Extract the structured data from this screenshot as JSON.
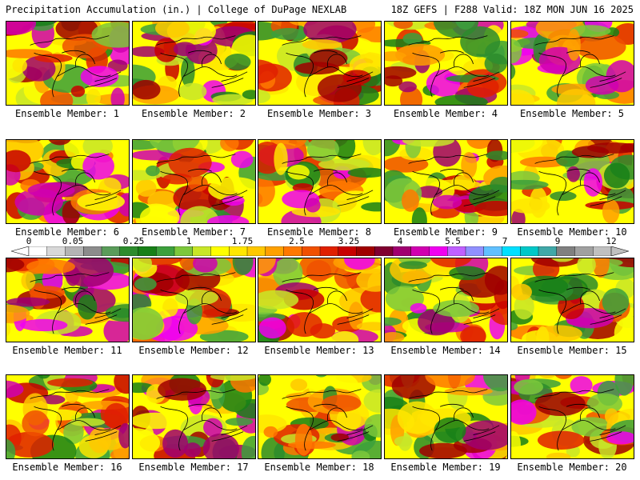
{
  "header": {
    "title": "Precipitation Accumulation (in.) | College of DuPage NEXLAB",
    "run_info": "18Z GEFS | F288 Valid: 18Z MON JUN 16 2025"
  },
  "panels": [
    {
      "label": "Ensemble Member: 1"
    },
    {
      "label": "Ensemble Member: 2"
    },
    {
      "label": "Ensemble Member: 3"
    },
    {
      "label": "Ensemble Member: 4"
    },
    {
      "label": "Ensemble Member: 5"
    },
    {
      "label": "Ensemble Member: 6"
    },
    {
      "label": "Ensemble Member: 7"
    },
    {
      "label": "Ensemble Member: 8"
    },
    {
      "label": "Ensemble Member: 9"
    },
    {
      "label": "Ensemble Member: 10"
    },
    {
      "label": "Ensemble Member: 11"
    },
    {
      "label": "Ensemble Member: 12"
    },
    {
      "label": "Ensemble Member: 13"
    },
    {
      "label": "Ensemble Member: 14"
    },
    {
      "label": "Ensemble Member: 15"
    },
    {
      "label": "Ensemble Member: 16"
    },
    {
      "label": "Ensemble Member: 17"
    },
    {
      "label": "Ensemble Member: 18"
    },
    {
      "label": "Ensemble Member: 19"
    },
    {
      "label": "Ensemble Member: 20"
    }
  ],
  "colorbar": {
    "tick_labels": [
      "0",
      "0.05",
      "0.25",
      "1",
      "1.75",
      "2.5",
      "3.25",
      "4",
      "5.5",
      "7",
      "9",
      "12"
    ],
    "colors": [
      "#ffffff",
      "#d8d8d8",
      "#b4b4b4",
      "#8c8c8c",
      "#5a9c5a",
      "#2d8c2d",
      "#178017",
      "#3ca03c",
      "#7cc83c",
      "#c8e628",
      "#ffff00",
      "#ffe600",
      "#ffc800",
      "#ffa000",
      "#ff7800",
      "#f05000",
      "#e02000",
      "#c80000",
      "#a00000",
      "#800030",
      "#a00070",
      "#d000b0",
      "#f000f0",
      "#c060ff",
      "#9090ff",
      "#60c0ff",
      "#00e0ff",
      "#00c8c8",
      "#40a8a8",
      "#808080",
      "#a0a0a0",
      "#c0c0c0"
    ]
  }
}
